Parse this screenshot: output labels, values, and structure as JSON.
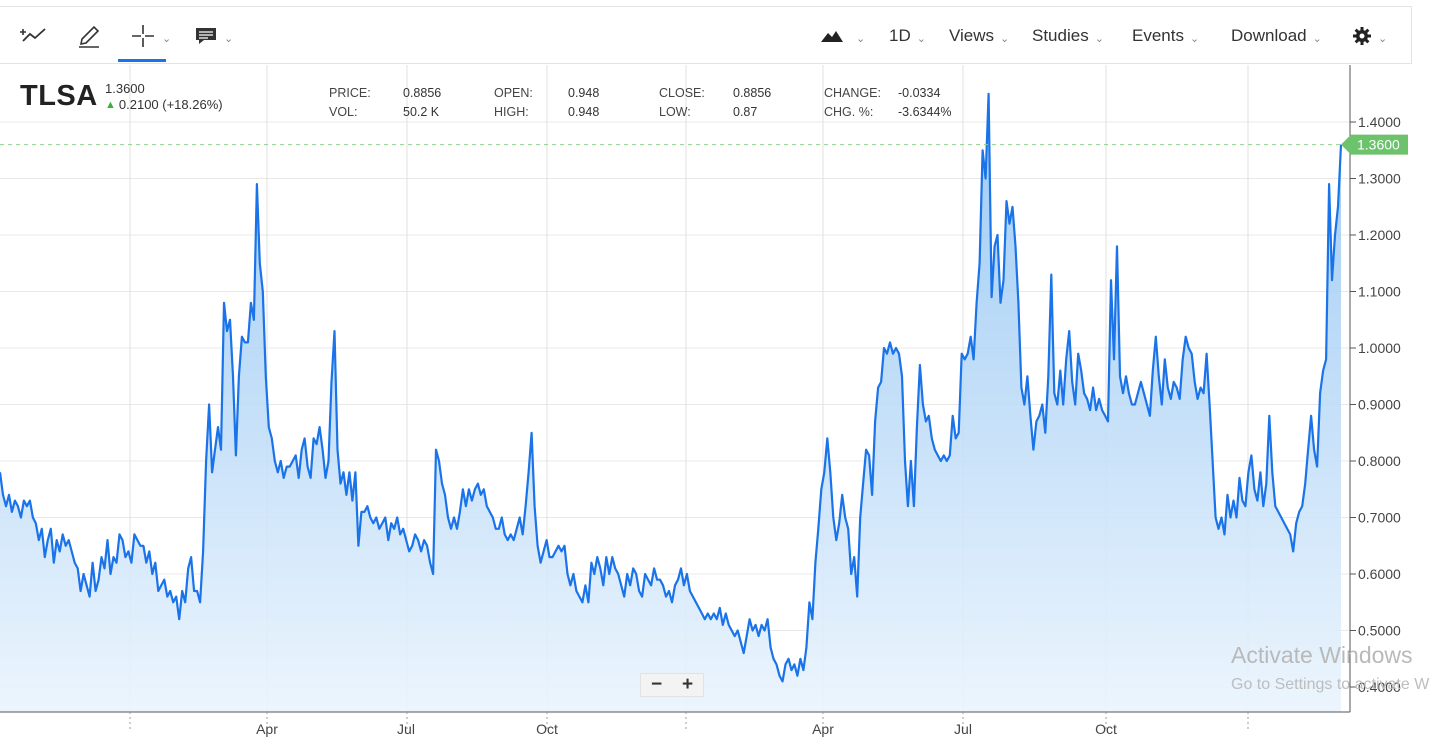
{
  "toolbar": {
    "left_tools": [
      {
        "name": "trendline-tool",
        "icon": "trendline-icon"
      },
      {
        "name": "draw-tool",
        "icon": "pencil-icon"
      },
      {
        "name": "crosshair-tool",
        "icon": "crosshair-icon",
        "active": true
      },
      {
        "name": "comment-tool",
        "icon": "comment-icon"
      }
    ],
    "chart_type_icon": "mountain-chart-icon",
    "interval": "1D",
    "views": "Views",
    "studies": "Studies",
    "events": "Events",
    "download": "Download",
    "settings_icon": "gear-icon",
    "accent_color": "#1a73e8"
  },
  "header": {
    "symbol": "TLSA",
    "last_price": "1.3600",
    "change": "0.2100 (+18.26%)",
    "stats": [
      {
        "label": "PRICE:",
        "value": "0.8856"
      },
      {
        "label": "VOL:",
        "value": "50.2 K"
      },
      {
        "label": "OPEN:",
        "value": "0.948"
      },
      {
        "label": "HIGH:",
        "value": "0.948"
      },
      {
        "label": "CLOSE:",
        "value": "0.8856"
      },
      {
        "label": "LOW:",
        "value": "0.87"
      },
      {
        "label": "CHANGE:",
        "value": "-0.0334"
      },
      {
        "label": "CHG. %:",
        "value": "-3.6344%"
      }
    ]
  },
  "chart_data": {
    "type": "area",
    "title": "",
    "xlabel": "",
    "ylabel": "",
    "ylim": [
      0.38,
      1.48
    ],
    "y_ticks": [
      "1.4000",
      "1.3000",
      "1.2000",
      "1.1000",
      "1.0000",
      "0.9000",
      "0.8000",
      "0.7000",
      "0.6000",
      "0.5000",
      "0.4000"
    ],
    "x_labels": [
      "Apr",
      "Jul",
      "Oct",
      "Apr",
      "Jul",
      "Oct"
    ],
    "last_price_label": "1.3600",
    "last_price_value": 1.36,
    "line_color": "#1a73e8",
    "last_price_color": "#6cc36c",
    "grid": true,
    "series": [
      {
        "values": [
          0.78,
          0.74,
          0.72,
          0.74,
          0.71,
          0.73,
          0.72,
          0.7,
          0.73,
          0.72,
          0.73,
          0.7,
          0.69,
          0.66,
          0.68,
          0.63,
          0.66,
          0.68,
          0.62,
          0.66,
          0.64,
          0.67,
          0.65,
          0.66,
          0.64,
          0.62,
          0.61,
          0.57,
          0.6,
          0.58,
          0.56,
          0.62,
          0.57,
          0.59,
          0.63,
          0.61,
          0.66,
          0.6,
          0.63,
          0.62,
          0.67,
          0.66,
          0.63,
          0.64,
          0.62,
          0.67,
          0.66,
          0.65,
          0.65,
          0.62,
          0.64,
          0.6,
          0.62,
          0.57,
          0.58,
          0.59,
          0.56,
          0.57,
          0.55,
          0.56,
          0.52,
          0.57,
          0.55,
          0.61,
          0.63,
          0.57,
          0.57,
          0.55,
          0.64,
          0.8,
          0.9,
          0.78,
          0.82,
          0.86,
          0.82,
          1.08,
          1.03,
          1.05,
          0.95,
          0.81,
          0.95,
          1.02,
          1.01,
          1.01,
          1.08,
          1.05,
          1.29,
          1.15,
          1.1,
          0.95,
          0.86,
          0.84,
          0.8,
          0.78,
          0.8,
          0.77,
          0.79,
          0.79,
          0.8,
          0.81,
          0.77,
          0.82,
          0.84,
          0.79,
          0.77,
          0.84,
          0.83,
          0.86,
          0.82,
          0.77,
          0.8,
          0.94,
          1.03,
          0.82,
          0.76,
          0.78,
          0.74,
          0.78,
          0.73,
          0.78,
          0.65,
          0.71,
          0.71,
          0.72,
          0.7,
          0.69,
          0.7,
          0.68,
          0.69,
          0.7,
          0.66,
          0.69,
          0.68,
          0.7,
          0.67,
          0.68,
          0.66,
          0.64,
          0.65,
          0.67,
          0.66,
          0.64,
          0.66,
          0.65,
          0.62,
          0.6,
          0.82,
          0.8,
          0.76,
          0.74,
          0.7,
          0.68,
          0.7,
          0.68,
          0.71,
          0.75,
          0.72,
          0.75,
          0.73,
          0.75,
          0.76,
          0.74,
          0.75,
          0.72,
          0.71,
          0.7,
          0.68,
          0.68,
          0.7,
          0.67,
          0.66,
          0.67,
          0.66,
          0.68,
          0.7,
          0.67,
          0.72,
          0.78,
          0.85,
          0.72,
          0.65,
          0.62,
          0.64,
          0.66,
          0.63,
          0.63,
          0.64,
          0.65,
          0.64,
          0.65,
          0.6,
          0.58,
          0.6,
          0.57,
          0.56,
          0.55,
          0.58,
          0.55,
          0.62,
          0.6,
          0.63,
          0.61,
          0.58,
          0.63,
          0.6,
          0.63,
          0.61,
          0.6,
          0.58,
          0.56,
          0.6,
          0.58,
          0.61,
          0.6,
          0.57,
          0.56,
          0.6,
          0.59,
          0.58,
          0.61,
          0.59,
          0.59,
          0.58,
          0.56,
          0.57,
          0.55,
          0.58,
          0.59,
          0.61,
          0.58,
          0.6,
          0.57,
          0.56,
          0.55,
          0.54,
          0.53,
          0.52,
          0.53,
          0.52,
          0.53,
          0.52,
          0.54,
          0.51,
          0.53,
          0.51,
          0.5,
          0.49,
          0.5,
          0.48,
          0.46,
          0.49,
          0.52,
          0.5,
          0.51,
          0.49,
          0.51,
          0.5,
          0.52,
          0.47,
          0.45,
          0.44,
          0.42,
          0.41,
          0.44,
          0.45,
          0.43,
          0.44,
          0.42,
          0.45,
          0.43,
          0.47,
          0.55,
          0.52,
          0.62,
          0.68,
          0.75,
          0.78,
          0.84,
          0.78,
          0.7,
          0.66,
          0.69,
          0.74,
          0.7,
          0.68,
          0.6,
          0.63,
          0.56,
          0.7,
          0.76,
          0.82,
          0.81,
          0.74,
          0.87,
          0.93,
          0.94,
          1.0,
          0.99,
          1.01,
          0.99,
          1.0,
          0.99,
          0.95,
          0.8,
          0.72,
          0.8,
          0.72,
          0.86,
          0.97,
          0.9,
          0.87,
          0.88,
          0.84,
          0.82,
          0.81,
          0.8,
          0.81,
          0.8,
          0.81,
          0.88,
          0.84,
          0.85,
          0.99,
          0.98,
          0.99,
          1.02,
          0.98,
          1.08,
          1.15,
          1.35,
          1.3,
          1.45,
          1.09,
          1.18,
          1.2,
          1.08,
          1.12,
          1.26,
          1.22,
          1.25,
          1.18,
          1.08,
          0.93,
          0.9,
          0.95,
          0.88,
          0.82,
          0.87,
          0.88,
          0.9,
          0.85,
          0.95,
          1.13,
          0.92,
          0.9,
          0.96,
          0.9,
          0.98,
          1.03,
          0.94,
          0.9,
          0.99,
          0.96,
          0.92,
          0.91,
          0.89,
          0.93,
          0.89,
          0.91,
          0.89,
          0.88,
          0.87,
          1.12,
          0.98,
          1.18,
          0.95,
          0.92,
          0.95,
          0.92,
          0.9,
          0.9,
          0.92,
          0.94,
          0.92,
          0.9,
          0.88,
          0.96,
          1.02,
          0.95,
          0.9,
          0.98,
          0.93,
          0.91,
          0.94,
          0.93,
          0.91,
          0.98,
          1.02,
          1.0,
          0.99,
          0.94,
          0.91,
          0.93,
          0.92,
          0.99,
          0.9,
          0.8,
          0.7,
          0.68,
          0.7,
          0.67,
          0.74,
          0.7,
          0.73,
          0.7,
          0.77,
          0.73,
          0.72,
          0.78,
          0.81,
          0.75,
          0.73,
          0.78,
          0.72,
          0.76,
          0.88,
          0.78,
          0.72,
          0.71,
          0.7,
          0.69,
          0.68,
          0.67,
          0.64,
          0.69,
          0.71,
          0.72,
          0.76,
          0.82,
          0.88,
          0.82,
          0.79,
          0.92,
          0.96,
          0.98,
          1.29,
          1.12,
          1.2,
          1.25,
          1.36
        ]
      }
    ]
  },
  "zoom": {
    "minus": "−",
    "plus": "+"
  },
  "watermark": {
    "line1": "Activate Windows",
    "line2": "Go to Settings to activate W"
  }
}
